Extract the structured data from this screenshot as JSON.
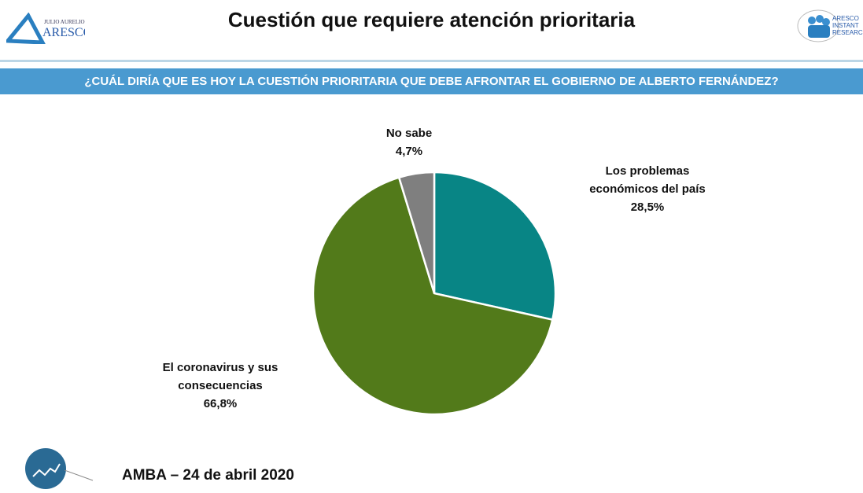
{
  "header": {
    "title": "Cuestión que requiere atención prioritaria",
    "logo_left": "JULIO AURELIO ARESCO",
    "logo_right": "ARESCO INSTANT RESEARCH"
  },
  "banner": "¿CUÁL DIRÍA QUE ES HOY LA CUESTIÓN PRIORITARIA QUE DEBE AFRONTAR EL GOBIERNO DE ALBERTO FERNÁNDEZ?",
  "chart_data": {
    "type": "pie",
    "title": "¿CUÁL DIRÍA QUE ES HOY LA CUESTIÓN PRIORITARIA QUE DEBE AFRONTAR EL GOBIERNO DE ALBERTO FERNÁNDEZ?",
    "slices": [
      {
        "label": "Los problemas económicos del país",
        "value": 28.5,
        "value_label": "28,5%",
        "color": "#088585"
      },
      {
        "label": "El coronavirus y sus consecuencias",
        "value": 66.8,
        "value_label": "66,8%",
        "color": "#527a1a"
      },
      {
        "label": "No sabe",
        "value": 4.7,
        "value_label": "4,7%",
        "color": "#7f7f7f"
      }
    ]
  },
  "footer": "AMBA –  24 de abril 2020"
}
